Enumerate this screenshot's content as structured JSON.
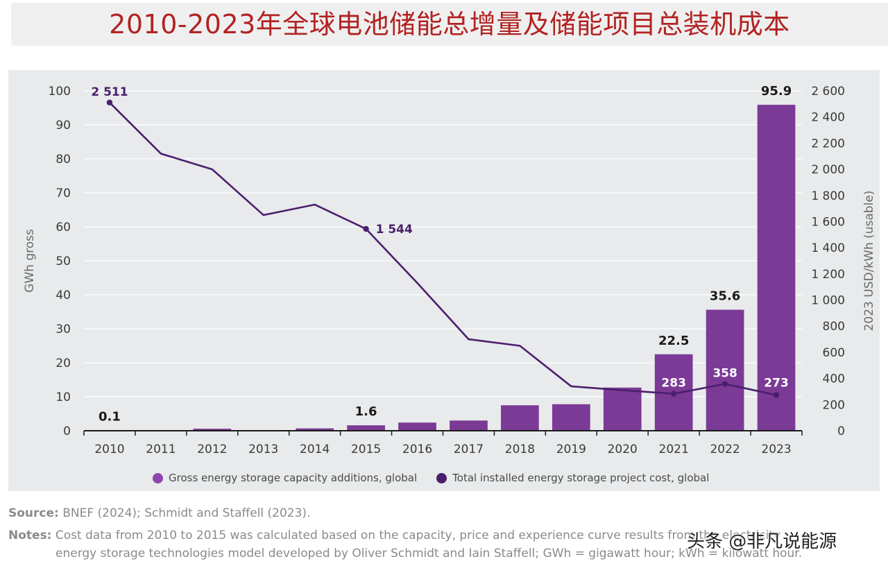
{
  "title": "2010-2023年全球电池储能总增量及储能项目总装机成本",
  "chart_data": {
    "type": "bar",
    "categories": [
      "2010",
      "2011",
      "2012",
      "2013",
      "2014",
      "2015",
      "2016",
      "2017",
      "2018",
      "2019",
      "2020",
      "2021",
      "2022",
      "2023"
    ],
    "series": [
      {
        "name": "Gross energy storage capacity additions, global",
        "kind": "bar",
        "axis": "left",
        "color": "#7b3a96",
        "values": [
          0.1,
          0.1,
          0.6,
          0.2,
          0.7,
          1.6,
          2.4,
          3.0,
          7.5,
          7.8,
          12.7,
          22.5,
          35.6,
          95.9
        ],
        "labeled": {
          "0": "0.1",
          "5": "1.6",
          "11": "22.5",
          "12": "35.6",
          "13": "95.9"
        }
      },
      {
        "name": "Total installed energy storage project cost, global",
        "kind": "line",
        "axis": "right",
        "color": "#4a1f6e",
        "values": [
          2511,
          2120,
          2000,
          1650,
          1730,
          1544,
          1130,
          700,
          650,
          340,
          310,
          283,
          358,
          273
        ],
        "labeled": {
          "0": "2 511",
          "5": "1 544",
          "11": "283",
          "12": "358",
          "13": "273"
        }
      }
    ],
    "ylabel_left": "GWh gross",
    "ylabel_right": "2023 USD/kWh (usable)",
    "ylim_left": [
      0,
      100
    ],
    "ylim_right": [
      0,
      2600
    ],
    "yticks_left": [
      "0",
      "10",
      "20",
      "30",
      "40",
      "50",
      "60",
      "70",
      "80",
      "90",
      "100"
    ],
    "yticks_right": [
      "0",
      "200",
      "400",
      "600",
      "800",
      "1 000",
      "1 200",
      "1 400",
      "1 600",
      "1 800",
      "2 000",
      "2 200",
      "2 400",
      "2 600"
    ],
    "grid": true,
    "legend_position": "bottom"
  },
  "legend": {
    "bar_label": "Gross energy storage capacity additions, global",
    "line_label": "Total installed energy storage project cost, global",
    "bar_color": "#8e44ad",
    "line_color": "#4a1f6e"
  },
  "footer": {
    "source_label": "Source:",
    "source_text": "BNEF (2024); Schmidt and Staffell (2023).",
    "notes_label": "Notes:",
    "notes_line1": "Cost data from 2010 to 2015 was calculated based on the capacity, price and experience curve results from the electricity",
    "notes_line2": "energy storage technologies model developed by Oliver Schmidt and Iain Staffell; GWh = gigawatt hour; kWh = kilowatt hour."
  },
  "watermark": "头条 @非凡说能源"
}
